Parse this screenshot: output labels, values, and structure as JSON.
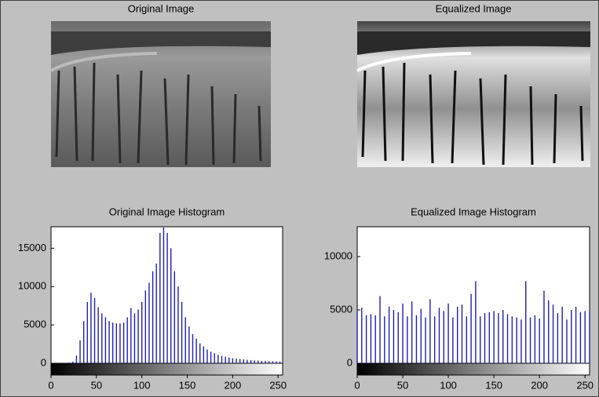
{
  "chart_data": [
    {
      "type": "image",
      "title": "Original Image"
    },
    {
      "type": "image",
      "title": "Equalized Image"
    },
    {
      "type": "bar",
      "title": "Original Image Histogram",
      "color": "#1f1fb4",
      "x": [
        0,
        4,
        8,
        12,
        16,
        20,
        24,
        28,
        32,
        36,
        40,
        44,
        48,
        52,
        56,
        60,
        64,
        68,
        72,
        76,
        80,
        84,
        88,
        92,
        96,
        100,
        104,
        108,
        112,
        116,
        120,
        124,
        128,
        132,
        136,
        140,
        144,
        148,
        152,
        156,
        160,
        164,
        168,
        172,
        176,
        180,
        184,
        188,
        192,
        196,
        200,
        204,
        208,
        212,
        216,
        220,
        224,
        228,
        232,
        236,
        240,
        244,
        248,
        252
      ],
      "values": [
        0,
        0,
        0,
        0,
        20,
        80,
        200,
        1000,
        3000,
        5500,
        8000,
        9200,
        8500,
        7300,
        6500,
        6000,
        5500,
        5300,
        5200,
        5200,
        5300,
        6000,
        7200,
        6500,
        7000,
        8000,
        9500,
        10500,
        12000,
        13000,
        17000,
        17700,
        17000,
        15000,
        12000,
        10000,
        8000,
        6000,
        4800,
        3800,
        3200,
        2600,
        2200,
        1800,
        1500,
        1300,
        1100,
        950,
        850,
        750,
        650,
        600,
        550,
        500,
        450,
        420,
        380,
        350,
        320,
        300,
        280,
        260,
        240,
        220
      ],
      "xlim": [
        0,
        255
      ],
      "ylim": [
        0,
        17800
      ],
      "xticks": [
        0,
        50,
        100,
        150,
        200,
        250
      ],
      "yticks": [
        0,
        5000,
        10000,
        15000
      ]
    },
    {
      "type": "bar",
      "title": "Equalized Image Histogram",
      "color": "#1f1fb4",
      "x": [
        0,
        5,
        10,
        15,
        20,
        25,
        30,
        35,
        40,
        45,
        50,
        55,
        60,
        65,
        70,
        75,
        80,
        85,
        90,
        95,
        100,
        105,
        110,
        115,
        120,
        125,
        130,
        135,
        140,
        145,
        150,
        155,
        160,
        165,
        170,
        175,
        180,
        185,
        190,
        195,
        200,
        205,
        210,
        215,
        220,
        225,
        230,
        235,
        240,
        245,
        250,
        255
      ],
      "values": [
        4800,
        5200,
        4500,
        4600,
        4500,
        6300,
        4400,
        5300,
        5000,
        4800,
        5600,
        4400,
        5800,
        4500,
        5100,
        4300,
        6000,
        4400,
        5200,
        4900,
        5600,
        4300,
        5300,
        5500,
        4400,
        6500,
        7700,
        4400,
        4700,
        4800,
        4900,
        4700,
        5000,
        4600,
        4400,
        4300,
        4100,
        7700,
        4300,
        4500,
        4200,
        6800,
        5900,
        5500,
        4700,
        5300,
        4100,
        5000,
        5300,
        4800,
        4900,
        4900
      ],
      "xlim": [
        0,
        255
      ],
      "ylim": [
        0,
        12800
      ],
      "xticks": [
        0,
        50,
        100,
        150,
        200,
        250
      ],
      "yticks": [
        0,
        5000,
        10000
      ]
    }
  ]
}
